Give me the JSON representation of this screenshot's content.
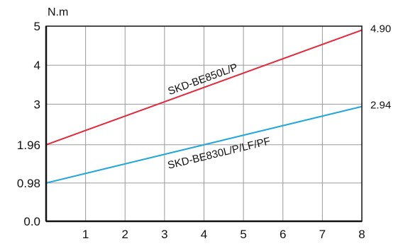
{
  "chart_data": {
    "type": "line",
    "title": "",
    "xlabel": "",
    "ylabel": "N.m",
    "x_ticks": [
      "1",
      "2",
      "3",
      "4",
      "5",
      "6",
      "7",
      "8"
    ],
    "y_ticks": [
      {
        "value": 0.0,
        "label": "0.0"
      },
      {
        "value": 0.98,
        "label": "0.98"
      },
      {
        "value": 1.96,
        "label": "1.96"
      },
      {
        "value": 3,
        "label": "3"
      },
      {
        "value": 4,
        "label": "4"
      },
      {
        "value": 5,
        "label": "5"
      }
    ],
    "xlim": [
      0,
      8
    ],
    "ylim": [
      0,
      5
    ],
    "grid": true,
    "legend": "none",
    "series": [
      {
        "name": "SKD-BE850L/P",
        "color": "#e2283a",
        "x": [
          0,
          8
        ],
        "y": [
          1.96,
          4.9
        ]
      },
      {
        "name": "SKD-BE830L/P/LF/PF",
        "color": "#22a6dc",
        "x": [
          0,
          8
        ],
        "y": [
          0.98,
          2.94
        ]
      }
    ],
    "end_labels": [
      "4.90",
      "2.94"
    ]
  },
  "colors": {
    "grid": "#9a9a9a",
    "frame": "#111111",
    "text": "#111111"
  }
}
